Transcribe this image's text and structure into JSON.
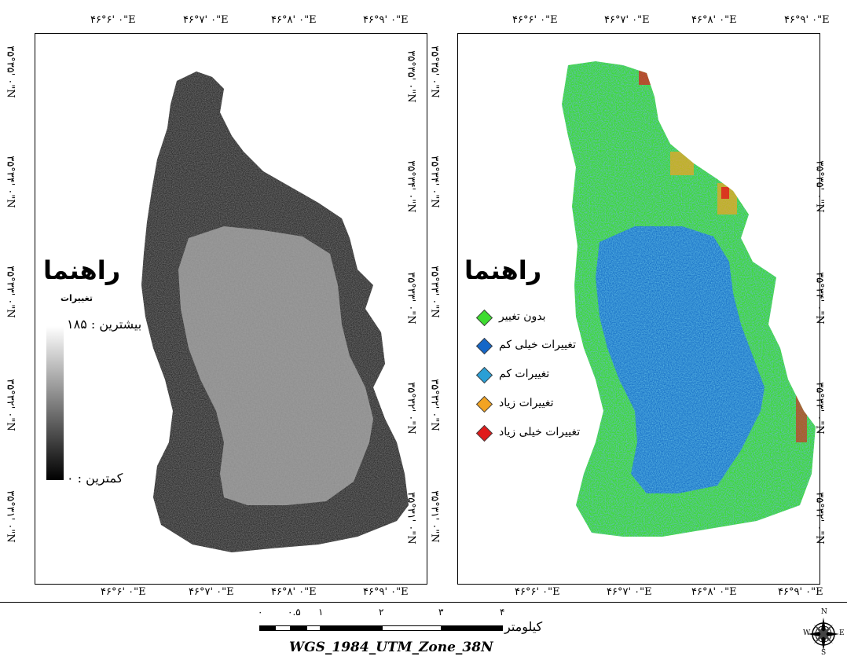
{
  "left_map": {
    "legend_title": "راهنما",
    "legend_subtitle": "تغییرات",
    "max_label": "بیشترین : ۱۸۵",
    "min_label": "کمترین : ۰",
    "top_ticks": [
      "۴۶°۶' ۰\"E",
      "۴۶°۷' ۰\"E",
      "۴۶°۸' ۰\"E",
      "۴۶°۹' ۰\"E"
    ],
    "bottom_ticks": [
      "۴۶°۶' ۰\"E",
      "۴۶°۷' ۰\"E",
      "۴۶°۸' ۰\"E",
      "۴۶°۹' ۰\"E"
    ],
    "left_ticks": [
      "۳۵°۳۵' ۰\"N",
      "۳۵°۳۴' ۰\"N",
      "۳۵°۳۳' ۰\"N",
      "۳۵°۳۲' ۰\"N",
      "۳۵°۳۱' ۰\"N"
    ],
    "right_ticks": [
      "۳۵°۳۵' ۰\"N",
      "۳۵°۳۴' ۰\"N",
      "۳۵°۳۳' ۰\"N",
      "۳۵°۳۲' ۰\"N",
      "۳۵°۳۱' ۰\"N"
    ]
  },
  "right_map": {
    "legend_title": "راهنما",
    "legend_items": [
      {
        "label": "بدون تغییر",
        "color": "#3ddc2f"
      },
      {
        "label": "تغییرات خیلی کم",
        "color": "#1466c8"
      },
      {
        "label": "تغییرات کم",
        "color": "#2a9fd6"
      },
      {
        "label": "تغییرات زیاد",
        "color": "#f2a322"
      },
      {
        "label": "تغییرات خیلی زیاد",
        "color": "#e01a1a"
      }
    ],
    "top_ticks": [
      "۴۶°۶' ۰\"E",
      "۴۶°۷' ۰\"E",
      "۴۶°۸' ۰\"E",
      "۴۶°۹' ۰\"E"
    ],
    "bottom_ticks": [
      "۴۶°۶' ۰\"E",
      "۴۶°۷' ۰\"E",
      "۴۶°۸' ۰\"E",
      "۴۶°۹' ۰\"E"
    ],
    "left_ticks": [
      "۳۵°۳۵' ۰\"N",
      "۳۵°۳۴' ۰\"N",
      "۳۵°۳۳' ۰\"N",
      "۳۵°۳۲' ۰\"N",
      "۳۵°۳۱' ۰\"N"
    ],
    "right_ticks": [
      "۳۵°۳۵' ۰\"N",
      "۳۵°۳۴' ۰\"N",
      "۳۵°۳۳' ۰\"N",
      "۳۵°۳۲' ۰\"N",
      "۳۵°۳۱' ۰\"N"
    ]
  },
  "scale_bar": {
    "numbers": [
      "۰",
      "۰.۵",
      "۱",
      "۲",
      "۳",
      "۴"
    ],
    "unit": "کیلومتر"
  },
  "projection": "WGS_1984_UTM_Zone_38N",
  "north_arrow": {
    "icon": "compass-rose-icon",
    "n": "N",
    "s": "S",
    "w": "W",
    "e": "E"
  }
}
